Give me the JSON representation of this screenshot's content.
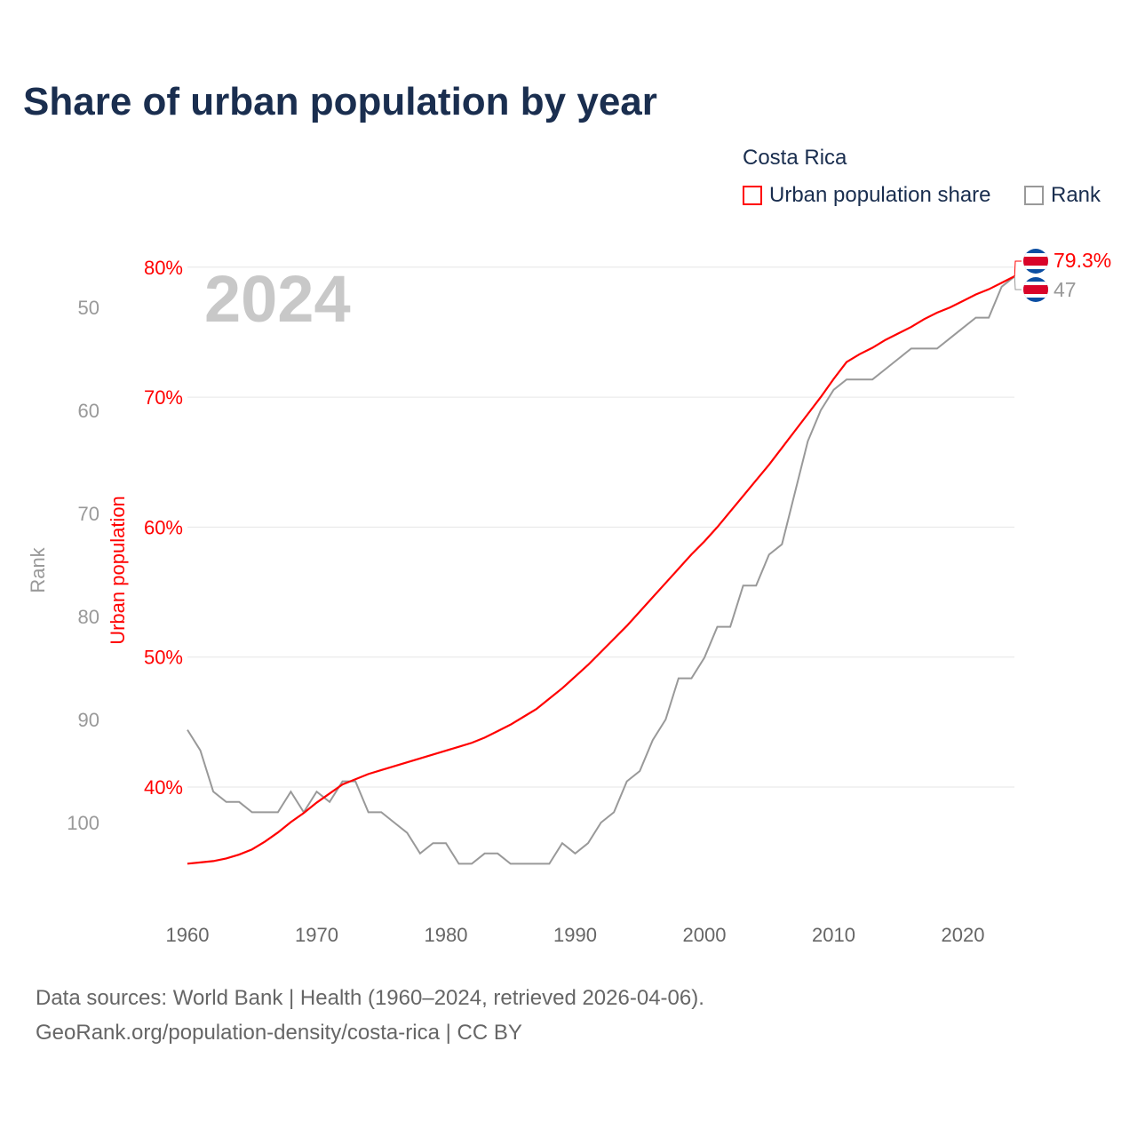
{
  "title": "Share of urban population by year",
  "legend": {
    "country": "Costa Rica",
    "urban_label": "Urban population share",
    "rank_label": "Rank"
  },
  "source_line1": "Data sources: World Bank | Health (1960–2024, retrieved 2026-04-06).",
  "source_line2": "GeoRank.org/population-density/costa-rica | CC BY",
  "colors": {
    "urban": "#ff0000",
    "rank": "#999999",
    "title": "#1a2e4f"
  },
  "chart_data": {
    "type": "line",
    "title": "Share of urban population by year",
    "year_watermark": "2024",
    "xlabel": "",
    "ylabel_left_outer": "Rank",
    "ylabel_left_inner": "Urban population",
    "x_ticks": [
      "1960",
      "1970",
      "1980",
      "1990",
      "2000",
      "2010",
      "2020"
    ],
    "urban_ticks": [
      "40%",
      "50%",
      "60%",
      "70%",
      "80%"
    ],
    "rank_ticks": [
      "50",
      "60",
      "70",
      "80",
      "90",
      "100"
    ],
    "xlim": [
      1960,
      2024
    ],
    "urban_ylim": [
      34,
      80
    ],
    "rank_ylim": [
      50,
      100
    ],
    "end_labels": {
      "urban": "79.3%",
      "rank": "47"
    },
    "x": [
      1960,
      1961,
      1962,
      1963,
      1964,
      1965,
      1966,
      1967,
      1968,
      1969,
      1970,
      1971,
      1972,
      1973,
      1974,
      1975,
      1976,
      1977,
      1978,
      1979,
      1980,
      1981,
      1982,
      1983,
      1984,
      1985,
      1986,
      1987,
      1988,
      1989,
      1990,
      1991,
      1992,
      1993,
      1994,
      1995,
      1996,
      1997,
      1998,
      1999,
      2000,
      2001,
      2002,
      2003,
      2004,
      2005,
      2006,
      2007,
      2008,
      2009,
      2010,
      2011,
      2012,
      2013,
      2014,
      2015,
      2016,
      2017,
      2018,
      2019,
      2020,
      2021,
      2022,
      2023,
      2024
    ],
    "series": [
      {
        "name": "Urban population share",
        "values": [
          34.1,
          34.2,
          34.3,
          34.5,
          34.8,
          35.2,
          35.8,
          36.5,
          37.3,
          38.0,
          38.8,
          39.5,
          40.2,
          40.6,
          41.0,
          41.3,
          41.6,
          41.9,
          42.2,
          42.5,
          42.8,
          43.1,
          43.4,
          43.8,
          44.3,
          44.8,
          45.4,
          46.0,
          46.8,
          47.6,
          48.5,
          49.4,
          50.4,
          51.4,
          52.4,
          53.5,
          54.6,
          55.7,
          56.8,
          57.9,
          58.9,
          60.0,
          61.2,
          62.4,
          63.6,
          64.8,
          66.1,
          67.4,
          68.7,
          70.0,
          71.4,
          72.7,
          73.3,
          73.8,
          74.4,
          74.9,
          75.4,
          76.0,
          76.5,
          76.9,
          77.4,
          77.9,
          78.3,
          78.8,
          79.3
        ]
      },
      {
        "name": "Rank",
        "values": [
          91,
          93,
          97,
          98,
          98,
          99,
          99,
          99,
          97,
          99,
          97,
          98,
          96,
          96,
          99,
          99,
          100,
          101,
          103,
          102,
          102,
          104,
          104,
          103,
          103,
          104,
          104,
          104,
          104,
          102,
          103,
          102,
          100,
          99,
          96,
          95,
          92,
          90,
          86,
          86,
          84,
          81,
          81,
          77,
          77,
          74,
          73,
          68,
          63,
          60,
          58,
          57,
          57,
          57,
          56,
          55,
          54,
          54,
          54,
          53,
          52,
          51,
          51,
          48,
          47
        ]
      }
    ]
  }
}
